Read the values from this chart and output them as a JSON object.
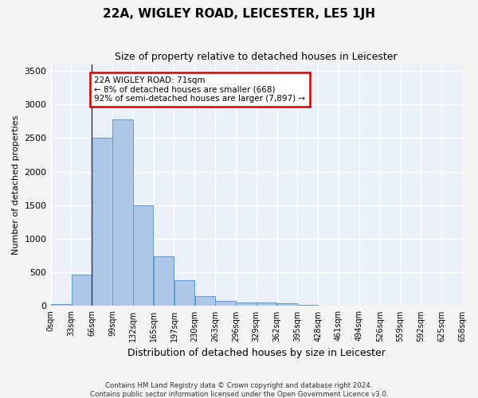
{
  "title": "22A, WIGLEY ROAD, LEICESTER, LE5 1JH",
  "subtitle": "Size of property relative to detached houses in Leicester",
  "xlabel": "Distribution of detached houses by size in Leicester",
  "ylabel": "Number of detached properties",
  "bar_values": [
    25,
    470,
    2500,
    2780,
    1500,
    740,
    390,
    150,
    80,
    55,
    55,
    40,
    20,
    5,
    2,
    1,
    0,
    0,
    0,
    0
  ],
  "bin_labels": [
    "0sqm",
    "33sqm",
    "66sqm",
    "99sqm",
    "132sqm",
    "165sqm",
    "197sqm",
    "230sqm",
    "263sqm",
    "296sqm",
    "329sqm",
    "362sqm",
    "395sqm",
    "428sqm",
    "461sqm",
    "494sqm",
    "526sqm",
    "559sqm",
    "592sqm",
    "625sqm",
    "658sqm"
  ],
  "bar_color": "#aec6e8",
  "bar_edge_color": "#5b9bd5",
  "bg_color": "#eaf0f8",
  "grid_color": "#ffffff",
  "marker_color": "#333333",
  "annotation_text": "22A WIGLEY ROAD: 71sqm\n← 8% of detached houses are smaller (668)\n92% of semi-detached houses are larger (7,897) →",
  "annotation_box_color": "#ffffff",
  "annotation_box_edge_color": "#cc0000",
  "ylim": [
    0,
    3600
  ],
  "yticks": [
    0,
    500,
    1000,
    1500,
    2000,
    2500,
    3000,
    3500
  ],
  "footer_line1": "Contains HM Land Registry data © Crown copyright and database right 2024.",
  "footer_line2": "Contains public sector information licensed under the Open Government Licence v3.0."
}
